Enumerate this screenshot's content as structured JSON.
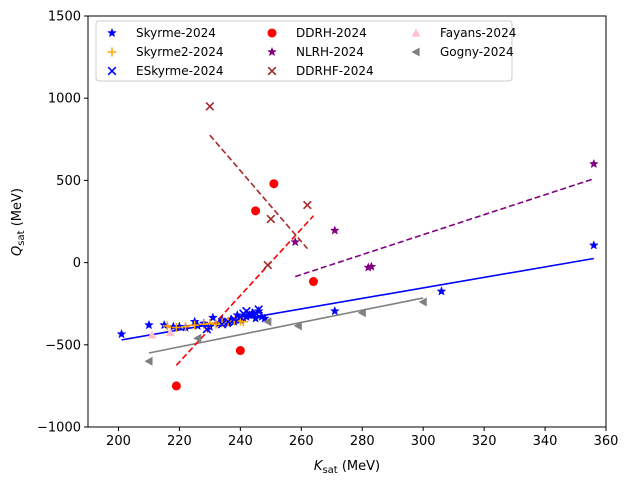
{
  "chart_data": {
    "type": "scatter",
    "xlabel": "K_sat (MeV)",
    "ylabel": "Q_sat (MeV)",
    "xlim": [
      190,
      360
    ],
    "ylim": [
      -1000,
      1500
    ],
    "xticks": [
      "200",
      "220",
      "240",
      "260",
      "280",
      "300",
      "320",
      "340",
      "360"
    ],
    "yticks": [
      "−1000",
      "−500",
      "0",
      "500",
      "1000",
      "1500"
    ],
    "xtick_values": [
      200,
      220,
      240,
      260,
      280,
      300,
      320,
      340,
      360
    ],
    "ytick_values": [
      -1000,
      -500,
      0,
      500,
      1000,
      1500
    ],
    "legend_position": "upper-left",
    "series": [
      {
        "name": "Skyrme-2024",
        "marker": "star",
        "color": "#0000ff",
        "points": [
          [
            201,
            -435
          ],
          [
            210,
            -380
          ],
          [
            215,
            -380
          ],
          [
            218,
            -390
          ],
          [
            220,
            -390
          ],
          [
            222,
            -395
          ],
          [
            225,
            -360
          ],
          [
            226,
            -385
          ],
          [
            228,
            -370
          ],
          [
            230,
            -390
          ],
          [
            231,
            -335
          ],
          [
            233,
            -370
          ],
          [
            234,
            -350
          ],
          [
            236,
            -370
          ],
          [
            237,
            -345
          ],
          [
            238,
            -360
          ],
          [
            239,
            -320
          ],
          [
            240,
            -350
          ],
          [
            241,
            -340
          ],
          [
            242,
            -330
          ],
          [
            243,
            -320
          ],
          [
            244,
            -310
          ],
          [
            245,
            -340
          ],
          [
            246,
            -295
          ],
          [
            247,
            -330
          ],
          [
            248,
            -340
          ],
          [
            271,
            -295
          ],
          [
            306,
            -175
          ],
          [
            356,
            105
          ]
        ]
      },
      {
        "name": "Skyrme2-2024",
        "marker": "plus",
        "color": "#ffa500",
        "points": [
          [
            216,
            -385
          ],
          [
            219,
            -395
          ],
          [
            222,
            -390
          ],
          [
            225,
            -380
          ],
          [
            228,
            -375
          ],
          [
            230,
            -370
          ],
          [
            232,
            -375
          ],
          [
            234,
            -365
          ],
          [
            236,
            -360
          ],
          [
            238,
            -355
          ],
          [
            240,
            -355
          ],
          [
            241,
            -360
          ]
        ]
      },
      {
        "name": "ESkyrme-2024",
        "marker": "x",
        "color": "#0000ff",
        "points": [
          [
            229,
            -405
          ],
          [
            234,
            -375
          ],
          [
            236,
            -360
          ],
          [
            238,
            -345
          ],
          [
            240,
            -330
          ],
          [
            241,
            -310
          ],
          [
            242,
            -295
          ],
          [
            243,
            -310
          ],
          [
            245,
            -305
          ],
          [
            246,
            -285
          ]
        ]
      },
      {
        "name": "DDRH-2024",
        "marker": "circle",
        "color": "#ff0000",
        "points": [
          [
            219,
            -750
          ],
          [
            240,
            -535
          ],
          [
            245,
            315
          ],
          [
            251,
            480
          ],
          [
            264,
            -115
          ]
        ]
      },
      {
        "name": "NLRH-2024",
        "marker": "star",
        "color": "#800080",
        "points": [
          [
            258,
            125
          ],
          [
            271,
            195
          ],
          [
            282,
            -30
          ],
          [
            283,
            -25
          ],
          [
            356,
            600
          ]
        ]
      },
      {
        "name": "DDRHF-2024",
        "marker": "x",
        "color": "#a52a2a",
        "points": [
          [
            230,
            950
          ],
          [
            249,
            -15
          ],
          [
            250,
            265
          ],
          [
            262,
            350
          ]
        ]
      },
      {
        "name": "Fayans-2024",
        "marker": "triangle-up",
        "color": "#ffc0cb",
        "points": [
          [
            211,
            -440
          ],
          [
            217,
            -425
          ]
        ]
      },
      {
        "name": "Gogny-2024",
        "marker": "triangle-left",
        "color": "#808080",
        "points": [
          [
            210,
            -600
          ],
          [
            226,
            -460
          ],
          [
            249,
            -360
          ],
          [
            259,
            -385
          ],
          [
            280,
            -305
          ],
          [
            300,
            -240
          ]
        ]
      }
    ],
    "fit_lines": [
      {
        "color": "#0000ff",
        "style": "solid",
        "x": [
          201,
          356
        ],
        "y": [
          -470,
          25
        ]
      },
      {
        "color": "#808080",
        "style": "solid",
        "x": [
          210,
          300
        ],
        "y": [
          -550,
          -215
        ]
      },
      {
        "color": "#ffa500",
        "style": "solid",
        "x": [
          216,
          241
        ],
        "y": [
          -395,
          -350
        ]
      },
      {
        "color": "#ff0000",
        "style": "dashed",
        "x": [
          219,
          264
        ],
        "y": [
          -625,
          285
        ]
      },
      {
        "color": "#800080",
        "style": "dashed",
        "x": [
          258,
          356
        ],
        "y": [
          -85,
          510
        ]
      },
      {
        "color": "#a52a2a",
        "style": "dashed",
        "x": [
          230,
          262
        ],
        "y": [
          775,
          85
        ]
      }
    ]
  }
}
